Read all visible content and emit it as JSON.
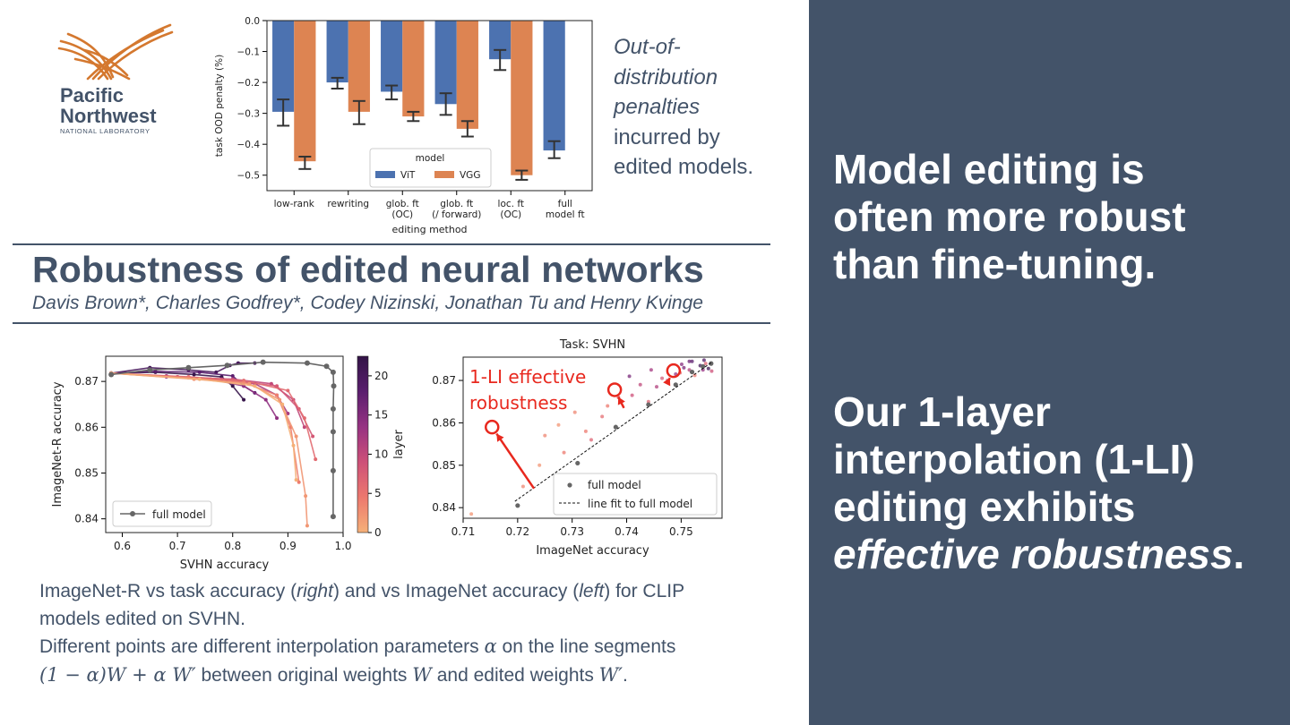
{
  "logo": {
    "line1": "Pacific",
    "line2": "Northwest",
    "line3": "NATIONAL LABORATORY"
  },
  "title": "Robustness of edited neural networks",
  "authors": "Davis Brown*, Charles Godfrey*, Codey Nizinski, Jonathan Tu and Henry Kvinge",
  "ood_caption": {
    "italic_part": [
      "Out-of-",
      "distribution",
      "penalties"
    ],
    "rest": [
      "incurred by",
      "edited models."
    ]
  },
  "right_panel": {
    "headline1": [
      "Model editing is",
      "often more robust",
      "than fine-tuning."
    ],
    "headline2_lines": [
      "Our 1-layer",
      "interpolation (1-LI)",
      "editing exhibits"
    ],
    "headline2_italic": "effective robustness",
    "headline2_period": "."
  },
  "caption": {
    "l1a": "ImageNet-R vs task accuracy (",
    "l1b": "right",
    "l1c": ") and vs ImageNet accuracy (",
    "l1d": "left",
    "l1e": ") for CLIP",
    "l2": "models edited on SVHN.",
    "l3a": "Different points are different interpolation parameters ",
    "l3alpha": "α",
    "l3b": " on the line segments",
    "l4math1": "(1 − α)W + α W′",
    "l4a": " between original weights ",
    "l4W": "W",
    "l4b": " and edited weights ",
    "l4Wp": "W′",
    "l4c": "."
  },
  "colors": {
    "vit": "#4c72b0",
    "vgg": "#dd8452",
    "panel": "#435369",
    "annotation": "#e8281e"
  },
  "chart_data": [
    {
      "type": "bar",
      "xlabel": "editing method",
      "ylabel": "task OOD penalty (%)",
      "ylim": [
        -0.55,
        0.0
      ],
      "yticks": [
        "0.0",
        "−0.1",
        "−0.2",
        "−0.3",
        "−0.4",
        "−0.5"
      ],
      "categories": [
        [
          "low-rank"
        ],
        [
          "rewriting"
        ],
        [
          "glob. ft",
          "(OC)"
        ],
        [
          "glob. ft",
          "(/ forward)"
        ],
        [
          "loc. ft",
          "(OC)"
        ],
        [
          "full",
          "model ft"
        ]
      ],
      "legend_title": "model",
      "series": [
        {
          "name": "ViT",
          "values": [
            -0.295,
            -0.2,
            -0.23,
            -0.27,
            -0.125,
            -0.42
          ],
          "err_low": [
            -0.34,
            -0.22,
            -0.255,
            -0.305,
            -0.16,
            -0.445
          ],
          "err_high": [
            -0.255,
            -0.185,
            -0.21,
            -0.235,
            -0.095,
            -0.39
          ]
        },
        {
          "name": "VGG",
          "values": [
            -0.455,
            -0.295,
            -0.31,
            -0.35,
            -0.5,
            null
          ],
          "err_low": [
            -0.48,
            -0.335,
            -0.325,
            -0.375,
            -0.515,
            null
          ],
          "err_high": [
            -0.44,
            -0.26,
            -0.295,
            -0.325,
            -0.485,
            null
          ]
        }
      ]
    },
    {
      "type": "line",
      "xlabel": "SVHN accuracy",
      "ylabel": "ImageNet-R accuracy",
      "xlim": [
        0.57,
        1.0
      ],
      "ylim": [
        0.837,
        0.8755
      ],
      "xticks": [
        "0.6",
        "0.7",
        "0.8",
        "0.9",
        "1.0"
      ],
      "yticks": [
        "0.84",
        "0.85",
        "0.86",
        "0.87"
      ],
      "colorbar": {
        "label": "layer",
        "ticks": [
          "0",
          "5",
          "10",
          "15",
          "20"
        ],
        "max": 22.5
      },
      "legend": [
        "full model"
      ],
      "full_model": {
        "x": [
          0.58,
          0.65,
          0.72,
          0.79,
          0.855,
          0.935,
          0.97,
          0.982,
          0.983,
          0.982,
          0.982,
          0.982,
          0.982
        ],
        "y": [
          0.8715,
          0.8725,
          0.873,
          0.8735,
          0.8742,
          0.874,
          0.8733,
          0.872,
          0.869,
          0.864,
          0.859,
          0.8505,
          0.8405
        ]
      },
      "edits": [
        {
          "layer": 22,
          "x": [
            0.58,
            0.66,
            0.73,
            0.78,
            0.8,
            0.82
          ],
          "y": [
            0.8718,
            0.872,
            0.8715,
            0.871,
            0.869,
            0.866
          ]
        },
        {
          "layer": 20,
          "x": [
            0.58,
            0.65,
            0.72,
            0.77,
            0.795,
            0.81,
            0.84
          ],
          "y": [
            0.8718,
            0.873,
            0.8725,
            0.872,
            0.8735,
            0.874,
            0.874
          ]
        },
        {
          "layer": 18,
          "x": [
            0.58,
            0.66,
            0.74,
            0.8,
            0.82,
            0.84
          ],
          "y": [
            0.8718,
            0.8722,
            0.872,
            0.8712,
            0.869,
            0.8675
          ]
        },
        {
          "layer": 14,
          "x": [
            0.58,
            0.68,
            0.76,
            0.82,
            0.86,
            0.88
          ],
          "y": [
            0.8718,
            0.871,
            0.8705,
            0.869,
            0.866,
            0.862
          ]
        },
        {
          "layer": 12,
          "x": [
            0.58,
            0.68,
            0.78,
            0.84,
            0.88,
            0.9
          ],
          "y": [
            0.8718,
            0.8712,
            0.8705,
            0.8695,
            0.867,
            0.863
          ]
        },
        {
          "layer": 10,
          "x": [
            0.58,
            0.7,
            0.8,
            0.87,
            0.91,
            0.93
          ],
          "y": [
            0.8718,
            0.871,
            0.8705,
            0.8695,
            0.866,
            0.86
          ]
        },
        {
          "layer": 8,
          "x": [
            0.58,
            0.7,
            0.8,
            0.88,
            0.92,
            0.945
          ],
          "y": [
            0.8718,
            0.871,
            0.8702,
            0.869,
            0.864,
            0.858
          ]
        },
        {
          "layer": 6,
          "x": [
            0.58,
            0.72,
            0.82,
            0.9,
            0.93,
            0.95
          ],
          "y": [
            0.8718,
            0.871,
            0.8702,
            0.868,
            0.862,
            0.853
          ]
        },
        {
          "layer": 4,
          "x": [
            0.58,
            0.72,
            0.82,
            0.88,
            0.905,
            0.92
          ],
          "y": [
            0.8718,
            0.8708,
            0.8698,
            0.867,
            0.86,
            0.848
          ]
        },
        {
          "layer": 2,
          "x": [
            0.58,
            0.73,
            0.83,
            0.885,
            0.915,
            0.932,
            0.935
          ],
          "y": [
            0.8718,
            0.8705,
            0.8695,
            0.866,
            0.858,
            0.845,
            0.8385
          ]
        },
        {
          "layer": 0,
          "x": [
            0.58,
            0.74,
            0.84,
            0.89,
            0.91,
            0.915
          ],
          "y": [
            0.8718,
            0.8705,
            0.869,
            0.865,
            0.856,
            0.8485
          ]
        }
      ]
    },
    {
      "type": "scatter",
      "title": "Task: SVHN",
      "xlabel": "ImageNet accuracy",
      "xlim": [
        0.71,
        0.7575
      ],
      "ylim": [
        0.8375,
        0.8755
      ],
      "xticks": [
        "0.71",
        "0.72",
        "0.73",
        "0.74",
        "0.75"
      ],
      "yticks": [
        "0.84",
        "0.85",
        "0.86",
        "0.87"
      ],
      "legend": [
        "full model",
        "line fit to full model"
      ],
      "annotation": "1-LI effective robustness",
      "annotation_lines": [
        "1-LI effective",
        "robustness"
      ],
      "full_model": {
        "x": [
          0.72,
          0.731,
          0.738,
          0.744,
          0.749,
          0.752,
          0.754,
          0.7555
        ],
        "y": [
          0.8405,
          0.8505,
          0.859,
          0.8643,
          0.869,
          0.872,
          0.8733,
          0.874
        ]
      },
      "fit_line": {
        "x": [
          0.7195,
          0.7555
        ],
        "y": [
          0.8415,
          0.8742
        ]
      },
      "highlighted": [
        {
          "x": 0.7153,
          "y": 0.859
        },
        {
          "x": 0.7378,
          "y": 0.8678
        },
        {
          "x": 0.7486,
          "y": 0.8723
        }
      ]
    }
  ]
}
